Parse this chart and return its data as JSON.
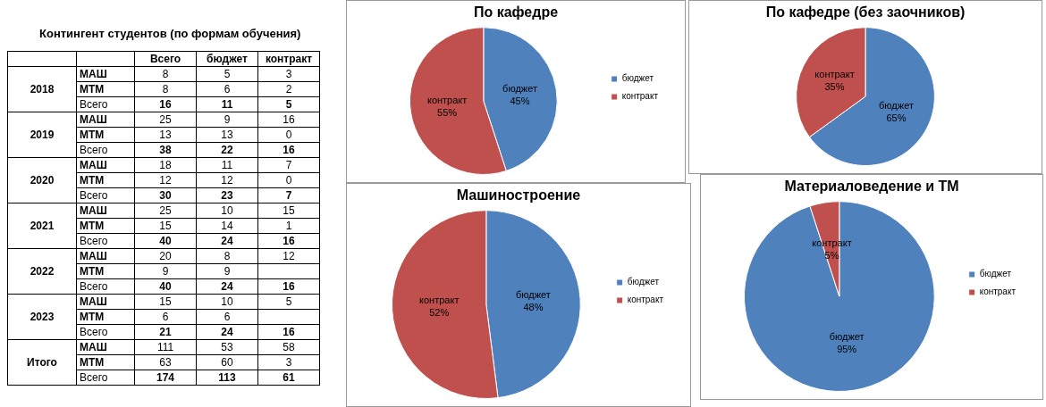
{
  "chart_data": [
    {
      "type": "heatmap",
      "data_labels": true,
      "title": "Контингент студентов (по формам обучения)",
      "categories": [
        "Всего",
        "бюджет",
        "контракт"
      ],
      "y_categories": [
        "МАШ",
        "МТМ",
        "Всего",
        "МАШ",
        "МТМ",
        "Всего",
        "МАШ",
        "МТМ",
        "Всего",
        "МАШ",
        "МТМ",
        "Всего",
        "МАШ",
        "МТМ",
        "Всего",
        "МАШ",
        "МТМ",
        "Всего",
        "МАШ",
        "МТМ",
        "Всего"
      ],
      "annotations": [
        "2018",
        "2019",
        "2020",
        "2021",
        "2022",
        "2023",
        "Итого"
      ],
      "cells": [
        [
          8,
          5,
          3
        ],
        [
          8,
          6,
          2
        ],
        [
          16,
          11,
          5
        ],
        [
          25,
          9,
          16
        ],
        [
          13,
          13,
          0
        ],
        [
          38,
          22,
          16
        ],
        [
          18,
          11,
          7
        ],
        [
          12,
          12,
          0
        ],
        [
          30,
          23,
          7
        ],
        [
          25,
          10,
          15
        ],
        [
          15,
          14,
          1
        ],
        [
          40,
          24,
          16
        ],
        [
          20,
          8,
          12
        ],
        [
          9,
          9,
          null
        ],
        [
          40,
          24,
          16
        ],
        [
          15,
          10,
          5
        ],
        [
          6,
          6,
          null
        ],
        [
          21,
          24,
          16
        ],
        [
          111,
          53,
          58
        ],
        [
          63,
          60,
          3
        ],
        [
          174,
          113,
          61
        ]
      ]
    },
    {
      "type": "pie",
      "title": "По кафедре",
      "categories": [
        "бюджет",
        "контракт"
      ],
      "values": [
        45,
        55
      ],
      "colors": [
        "#4f81bd",
        "#c0504d"
      ],
      "value_labels": [
        "45%",
        "55%"
      ],
      "legend": "right"
    },
    {
      "type": "pie",
      "title": "По кафедре (без заочников)",
      "categories": [
        "бюджет",
        "контракт"
      ],
      "values": [
        65,
        35
      ],
      "colors": [
        "#4f81bd",
        "#c0504d"
      ],
      "value_labels": [
        "65%",
        "35%"
      ]
    },
    {
      "type": "pie",
      "title": "Машиностроение",
      "categories": [
        "бюджет",
        "контракт"
      ],
      "values": [
        48,
        52
      ],
      "colors": [
        "#4f81bd",
        "#c0504d"
      ],
      "value_labels": [
        "48%",
        "52%"
      ],
      "legend": "right"
    },
    {
      "type": "pie",
      "title": "Материаловедение и ТМ",
      "categories": [
        "бюджет",
        "контракт"
      ],
      "values": [
        95,
        5
      ],
      "colors": [
        "#4f81bd",
        "#c0504d"
      ],
      "value_labels": [
        "95%",
        "5%"
      ],
      "legend": "right"
    }
  ]
}
